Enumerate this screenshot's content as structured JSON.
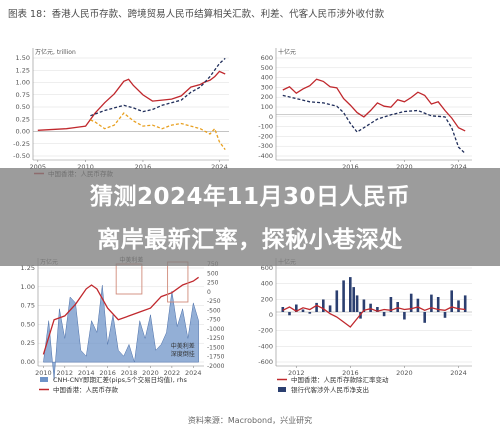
{
  "figure_title": "图表 18：香港人民币存款、跨境贸易人民币结算相关汇款、利差、代客人民币涉外收付款",
  "headline": {
    "line1": "猜测2024年11月30日人民币",
    "line2": "离岸最新汇率，探秘小巷深处"
  },
  "source": "资料来源：Macrobond，兴业研究",
  "colors": {
    "red": "#c0282d",
    "navy": "#1f2d5a",
    "orange": "#e8a020",
    "blue_fill": "#6f94c8",
    "navy_bar": "#2b3f70",
    "red_bar": "#c0282d",
    "box": "#d08a7a",
    "grid": "#dddddd",
    "tick": "#555555"
  },
  "chart_data": [
    {
      "type": "line",
      "unit_label": "万亿元, trillion",
      "x_ticks": [
        "2005",
        "2010",
        "2016",
        "2024"
      ],
      "y_ticks": [
        "1.50",
        "1.25",
        "1.00",
        "0.75",
        "0.50",
        "0.25",
        "0.00",
        "-0.25",
        "-0.50"
      ],
      "ylim": [
        -0.55,
        1.6
      ],
      "legend": [
        "中国香港：人民币存款"
      ],
      "series": [
        {
          "name": "red",
          "style": "solid",
          "color": "red",
          "x": [
            2005,
            2008,
            2010,
            2011,
            2012,
            2013,
            2014,
            2014.5,
            2015,
            2016,
            2017,
            2018,
            2019,
            2020,
            2021,
            2022,
            2022.5,
            2023,
            2023.5,
            2024,
            2024.6
          ],
          "y": [
            0.02,
            0.05,
            0.1,
            0.35,
            0.55,
            0.72,
            0.96,
            1.0,
            0.88,
            0.7,
            0.58,
            0.6,
            0.62,
            0.68,
            0.85,
            0.9,
            0.95,
            0.98,
            1.05,
            1.15,
            1.1
          ]
        },
        {
          "name": "navy",
          "style": "dashed",
          "color": "navy",
          "x": [
            2010.5,
            2012,
            2013,
            2014,
            2015,
            2016,
            2017,
            2018,
            2019,
            2020,
            2021,
            2022,
            2023,
            2024,
            2024.6
          ],
          "y": [
            0.3,
            0.4,
            0.45,
            0.5,
            0.45,
            0.38,
            0.42,
            0.5,
            0.55,
            0.6,
            0.75,
            0.85,
            1.05,
            1.3,
            1.4
          ]
        },
        {
          "name": "orange",
          "style": "dashed",
          "color": "orange",
          "x": [
            2010.5,
            2011,
            2012,
            2013,
            2014,
            2015,
            2016,
            2017,
            2018,
            2019,
            2020,
            2021,
            2022,
            2023,
            2023.5,
            2024,
            2024.6
          ],
          "y": [
            0.22,
            0.18,
            0.05,
            0.12,
            0.35,
            0.2,
            0.1,
            0.12,
            0.05,
            0.12,
            0.15,
            0.1,
            0.05,
            -0.05,
            0.05,
            -0.2,
            -0.35
          ]
        }
      ]
    },
    {
      "type": "line",
      "unit_label": "十亿元",
      "x_ticks": [
        "2016",
        "2020",
        "2024"
      ],
      "y_ticks": [
        "600",
        "500",
        "400",
        "300",
        "200",
        "100",
        "0",
        "-100",
        "-200",
        "-300",
        "-400"
      ],
      "ylim": [
        -420,
        620
      ],
      "series": [
        {
          "name": "red",
          "style": "solid",
          "color": "red",
          "x": [
            2011,
            2011.5,
            2012,
            2012.5,
            2013,
            2013.5,
            2014,
            2014.5,
            2015,
            2015.5,
            2016,
            2016.5,
            2017,
            2017.5,
            2018,
            2018.5,
            2019,
            2019.5,
            2020,
            2020.5,
            2021,
            2021.5,
            2022,
            2022.5,
            2023,
            2023.5,
            2024,
            2024.5
          ],
          "y": [
            230,
            260,
            200,
            240,
            270,
            330,
            310,
            260,
            250,
            150,
            90,
            20,
            -20,
            40,
            110,
            80,
            70,
            140,
            120,
            160,
            210,
            180,
            100,
            120,
            40,
            -30,
            -120,
            -150
          ]
        },
        {
          "name": "navy",
          "style": "dashed",
          "color": "navy",
          "x": [
            2011,
            2012,
            2013,
            2014,
            2015,
            2015.5,
            2016,
            2016.5,
            2017,
            2018,
            2019,
            2020,
            2021,
            2022,
            2023,
            2023.5,
            2024,
            2024.5
          ],
          "y": [
            180,
            150,
            120,
            110,
            80,
            20,
            -80,
            -160,
            -120,
            -40,
            0,
            30,
            40,
            -10,
            -20,
            -120,
            -300,
            -360
          ]
        }
      ]
    },
    {
      "type": "area",
      "unit_label": "万亿元",
      "x_ticks": [
        "2010",
        "2012",
        "2014",
        "2016",
        "2018",
        "2020",
        "2022",
        "2024"
      ],
      "y_ticks": [
        "1.25",
        "1.00",
        "0.75",
        "0.50",
        "0.25",
        "0.00"
      ],
      "y2_ticks": [
        "750",
        "500",
        "250",
        "0",
        "-250",
        "-500",
        "-750",
        "-1000",
        "-1250",
        "-1500",
        "-1750",
        "-2000"
      ],
      "ylim": [
        -0.05,
        1.35
      ],
      "legend": [
        "CNH-CNY即期汇差(pips,5个交易日均值), rhs",
        "中国香港：人民币存款"
      ],
      "annotations": [
        "中美利差",
        "中美利差\n深度倒挂"
      ],
      "series": [
        {
          "name": "spread",
          "style": "area",
          "color": "blue_fill",
          "x": [
            2010,
            2010.5,
            2011,
            2011.5,
            2012,
            2012.5,
            2013,
            2013.5,
            2014,
            2014.5,
            2015,
            2015.5,
            2016,
            2016.5,
            2017,
            2017.5,
            2018,
            2018.5,
            2019,
            2019.5,
            2020,
            2020.5,
            2021,
            2021.5,
            2022,
            2022.5,
            2023,
            2023.5,
            2024,
            2024.5
          ],
          "y": [
            0,
            350,
            -150,
            450,
            200,
            550,
            500,
            100,
            50,
            350,
            250,
            650,
            150,
            400,
            100,
            50,
            150,
            0,
            350,
            200,
            400,
            100,
            150,
            250,
            600,
            300,
            450,
            200,
            500,
            350
          ]
        },
        {
          "name": "deposit",
          "style": "solid",
          "color": "red",
          "x": [
            2010,
            2011,
            2012,
            2013,
            2014,
            2014.5,
            2015,
            2016,
            2017,
            2018,
            2019,
            2020,
            2021,
            2022,
            2023,
            2024,
            2024.5
          ],
          "y": [
            0.1,
            0.55,
            0.6,
            0.75,
            0.95,
            1.0,
            0.95,
            0.7,
            0.55,
            0.6,
            0.65,
            0.7,
            0.85,
            0.9,
            1.0,
            1.05,
            1.1
          ]
        }
      ]
    },
    {
      "type": "bar",
      "unit_label": "十亿元",
      "x_ticks": [
        "2012",
        "2016",
        "2020",
        "2024"
      ],
      "y_ticks": [
        "600",
        "400",
        "200",
        "0",
        "-200",
        "-400",
        "-600"
      ],
      "ylim": [
        -650,
        650
      ],
      "legend": [
        "中国香港：人民币存款除汇率变动",
        "银行代客涉外人民币净支出"
      ],
      "series": [
        {
          "name": "net",
          "style": "bar",
          "color": "navy_bar",
          "x": [
            2011,
            2011.5,
            2012,
            2012.5,
            2013,
            2013.5,
            2014,
            2014.5,
            2015,
            2015.5,
            2016,
            2016.25,
            2016.5,
            2016.75,
            2017,
            2017.5,
            2018,
            2018.5,
            2019,
            2019.5,
            2020,
            2020.5,
            2021,
            2021.5,
            2022,
            2022.5,
            2023,
            2023.5,
            2024,
            2024.5
          ],
          "y": [
            60,
            -40,
            90,
            30,
            -20,
            110,
            150,
            80,
            260,
            380,
            420,
            300,
            200,
            -80,
            150,
            100,
            60,
            -50,
            180,
            120,
            -90,
            220,
            160,
            -130,
            210,
            180,
            -70,
            260,
            140,
            200
          ]
        },
        {
          "name": "deposit_ex_fx",
          "style": "solid",
          "color": "red",
          "x": [
            2011,
            2011.5,
            2012,
            2012.5,
            2013,
            2013.5,
            2014,
            2014.5,
            2015,
            2015.5,
            2016,
            2016.5,
            2017,
            2017.5,
            2018,
            2018.5,
            2019,
            2019.5,
            2020,
            2020.5,
            2021,
            2021.5,
            2022,
            2022.5,
            2023,
            2023.5,
            2024,
            2024.5
          ],
          "y": [
            20,
            60,
            10,
            50,
            30,
            80,
            40,
            -20,
            -60,
            -120,
            -180,
            -80,
            20,
            40,
            10,
            30,
            20,
            50,
            30,
            40,
            60,
            20,
            50,
            30,
            20,
            60,
            40,
            30
          ]
        }
      ]
    }
  ]
}
